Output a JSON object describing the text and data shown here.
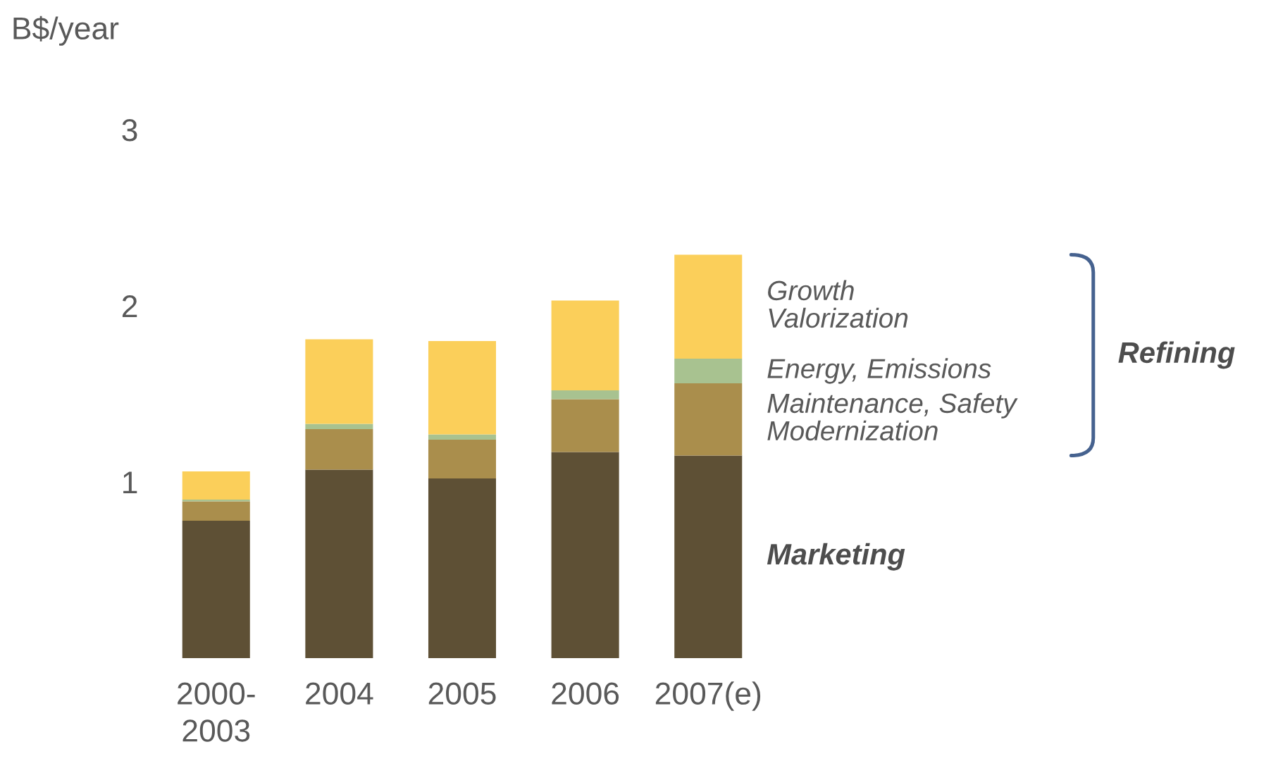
{
  "chart_data": {
    "type": "bar",
    "stacked": true,
    "ylabel": "B$/year",
    "categories": [
      "2000-\n2003",
      "2004",
      "2005",
      "2006",
      "2007(e)"
    ],
    "series": [
      {
        "name": "Marketing",
        "color": "#5e5035",
        "values": [
          0.78,
          1.07,
          1.02,
          1.17,
          1.15
        ]
      },
      {
        "name": "Maintenance, Safety\nModernization",
        "color": "#aa8e4c",
        "values": [
          0.11,
          0.23,
          0.22,
          0.3,
          0.41
        ]
      },
      {
        "name": "Energy, Emissions",
        "color": "#a8c290",
        "values": [
          0.01,
          0.03,
          0.03,
          0.05,
          0.14
        ]
      },
      {
        "name": "Growth\nValorization",
        "color": "#fbcf5a",
        "values": [
          0.16,
          0.48,
          0.53,
          0.51,
          0.59
        ]
      }
    ],
    "ylim": [
      0,
      3
    ],
    "yticks": [
      1,
      2,
      3
    ],
    "grid": false,
    "annotations": [
      "Refining"
    ]
  }
}
